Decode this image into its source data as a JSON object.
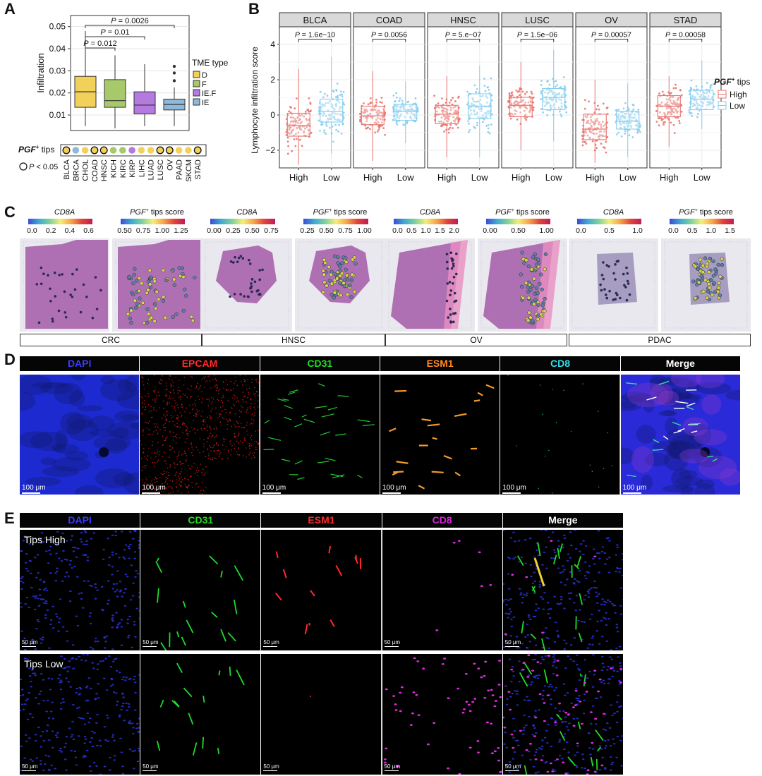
{
  "panels": {
    "a": "A",
    "b": "B",
    "c": "C",
    "d": "D",
    "e": "E"
  },
  "panel_a": {
    "ylabel": "Infiltration",
    "yticks": [
      "0.01",
      "0.02",
      "0.03",
      "0.04",
      "0.05"
    ],
    "pvalues": [
      "P = 0.0026",
      "P = 0.01",
      "P = 0.012"
    ],
    "legend_title": "TME type",
    "legend": [
      {
        "label": "D",
        "color": "#F2D15A"
      },
      {
        "label": "F",
        "color": "#A8C96A"
      },
      {
        "label": "IE.F",
        "color": "#B57AE0"
      },
      {
        "label": "IE",
        "color": "#8FB9DA"
      }
    ],
    "tips_label": "PGF⁺ tips",
    "sig_label": "P < 0.05",
    "cancers": [
      "BLCA",
      "BRCA",
      "CHOL",
      "COAD",
      "HNSC",
      "KICH",
      "KIRC",
      "KIRP",
      "LIHC",
      "LUAD",
      "LUSC",
      "OV",
      "PAAD",
      "SKCM",
      "STAD"
    ],
    "dot_colors": [
      "#F2D15A",
      "#8FB9DA",
      "#F2D15A",
      "#F2D15A",
      "#F2D15A",
      "#A8C96A",
      "#A8C96A",
      "#B57AE0",
      "#F2D15A",
      "#F2D15A",
      "#F2D15A",
      "#F2D15A",
      "#F2D15A",
      "#F2D15A",
      "#F2D15A"
    ],
    "dot_sig": [
      true,
      false,
      false,
      true,
      true,
      false,
      false,
      false,
      false,
      false,
      true,
      true,
      false,
      false,
      true
    ]
  },
  "chart_data": [
    {
      "type": "box",
      "title": "",
      "ylabel": "Infiltration",
      "ylim": [
        0.003,
        0.055
      ],
      "categories": [
        "D",
        "F",
        "IE.F",
        "IE"
      ],
      "colors": [
        "#F2D15A",
        "#A8C96A",
        "#B57AE0",
        "#8FB9DA"
      ],
      "boxes": [
        {
          "min": 0.005,
          "q1": 0.0135,
          "median": 0.0205,
          "q3": 0.0275,
          "max": 0.048
        },
        {
          "min": 0.004,
          "q1": 0.0135,
          "median": 0.0165,
          "q3": 0.026,
          "max": 0.037
        },
        {
          "min": 0.005,
          "q1": 0.0105,
          "median": 0.0145,
          "q3": 0.0205,
          "max": 0.033
        },
        {
          "min": 0.005,
          "q1": 0.0123,
          "median": 0.0148,
          "q3": 0.0172,
          "max": 0.0225
        }
      ],
      "outliers": [
        {
          "group": 3,
          "value": 0.0255
        },
        {
          "group": 3,
          "value": 0.029
        },
        {
          "group": 3,
          "value": 0.032
        }
      ],
      "comparisons": [
        {
          "from": 0,
          "to": 3,
          "p": "P = 0.0026"
        },
        {
          "from": 0,
          "to": 2,
          "p": "P = 0.01"
        },
        {
          "from": 0,
          "to": 1,
          "p": "P = 0.012"
        }
      ]
    },
    {
      "type": "box",
      "ylabel": "Lymphocyte infiltration score",
      "ylim": [
        -3,
        5
      ],
      "yticks": [
        -2,
        0,
        2,
        4
      ],
      "groups": [
        "High",
        "Low"
      ],
      "group_colors": [
        "#E8746F",
        "#86CDEE"
      ],
      "legend_title": "PGF⁺ tips",
      "facets": [
        {
          "name": "BLCA",
          "p": "P = 1.6e−10",
          "high": {
            "min": -2.8,
            "q1": -1.2,
            "median": -0.6,
            "q3": 0.1,
            "max": 2.6
          },
          "low": {
            "min": -2.2,
            "q1": -0.4,
            "median": 0.2,
            "q3": 0.9,
            "max": 3.3
          }
        },
        {
          "name": "COAD",
          "p": "P = 0.0056",
          "high": {
            "min": -2.6,
            "q1": -0.55,
            "median": -0.05,
            "q3": 0.5,
            "max": 2.5
          },
          "low": {
            "min": -1.6,
            "q1": -0.3,
            "median": 0.2,
            "q3": 0.6,
            "max": 1.9
          }
        },
        {
          "name": "HNSC",
          "p": "P = 5.e−07",
          "high": {
            "min": -2.4,
            "q1": -0.5,
            "median": 0.05,
            "q3": 0.55,
            "max": 2.2
          },
          "low": {
            "min": -2.4,
            "q1": -0.2,
            "median": 0.5,
            "q3": 1.2,
            "max": 2.8
          }
        },
        {
          "name": "LUSC",
          "p": "P = 1.5e−06",
          "high": {
            "min": -2.0,
            "q1": -0.1,
            "median": 0.55,
            "q3": 1.0,
            "max": 3.0
          },
          "low": {
            "min": -1.5,
            "q1": 0.3,
            "median": 1.0,
            "q3": 1.5,
            "max": 3.7
          }
        },
        {
          "name": "OV",
          "p": "P = 0.00057",
          "high": {
            "min": -2.7,
            "q1": -1.4,
            "median": -0.8,
            "q3": 0.05,
            "max": 2.0
          },
          "low": {
            "min": -2.4,
            "q1": -0.8,
            "median": -0.35,
            "q3": 0.2,
            "max": 1.8
          }
        },
        {
          "name": "STAD",
          "p": "P = 0.00058",
          "high": {
            "min": -1.8,
            "q1": -0.1,
            "median": 0.5,
            "q3": 1.1,
            "max": 2.2
          },
          "low": {
            "min": -0.8,
            "q1": 0.3,
            "median": 0.9,
            "q3": 1.4,
            "max": 3.1
          }
        }
      ]
    }
  ],
  "panel_c": {
    "samples": [
      {
        "name": "CRC",
        "cd8_label": "CD8A",
        "cd8_ticks": [
          "0.0",
          "0.2",
          "0.4",
          "0.6"
        ],
        "tips_label": "PGF⁺ tips score",
        "tips_ticks": [
          "0.50",
          "0.75",
          "1.00",
          "1.25"
        ]
      },
      {
        "name": "HNSC",
        "cd8_label": "CD8A",
        "cd8_ticks": [
          "0.00",
          "0.25",
          "0.50",
          "0.75"
        ],
        "tips_label": "PGF⁺ tips score",
        "tips_ticks": [
          "0.25",
          "0.50",
          "0.75",
          "1.00"
        ]
      },
      {
        "name": "OV",
        "cd8_label": "CD8A",
        "cd8_ticks": [
          "0.0",
          "0.5",
          "1.0",
          "1.5",
          "2.0"
        ],
        "tips_label": "PGF⁺ tips score",
        "tips_ticks": [
          "0.00",
          "0.50",
          "1.00"
        ]
      },
      {
        "name": "PDAC",
        "cd8_label": "CD8A",
        "cd8_ticks": [
          "0.0",
          "0.5",
          "1.0"
        ],
        "tips_label": "PGF⁺ tips score",
        "tips_ticks": [
          "0.0",
          "0.5",
          "1.0",
          "1.5"
        ]
      }
    ]
  },
  "panel_d": {
    "channels": [
      {
        "label": "DAPI",
        "color": "#3a3aff"
      },
      {
        "label": "EPCAM",
        "color": "#ff2a2a"
      },
      {
        "label": "CD31",
        "color": "#22dd22"
      },
      {
        "label": "ESM1",
        "color": "#ff8a1e"
      },
      {
        "label": "CD8",
        "color": "#2ee0ee"
      },
      {
        "label": "Merge",
        "color": "#ffffff"
      }
    ],
    "scale": "100 μm"
  },
  "panel_e": {
    "channels": [
      {
        "label": "DAPI",
        "color": "#3a3aff"
      },
      {
        "label": "CD31",
        "color": "#22dd22"
      },
      {
        "label": "ESM1",
        "color": "#ff2a2a"
      },
      {
        "label": "CD8",
        "color": "#dd22dd"
      },
      {
        "label": "Merge",
        "color": "#ffffff"
      }
    ],
    "rows": [
      "Tips High",
      "Tips Low"
    ],
    "scale": "50 μm"
  }
}
